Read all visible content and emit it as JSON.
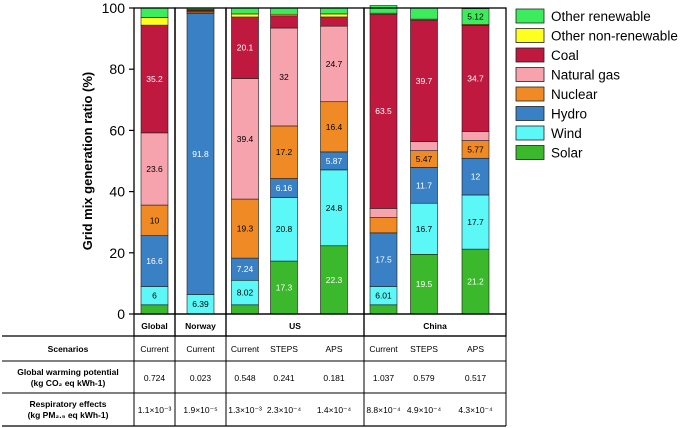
{
  "chart_data": {
    "type": "bar",
    "stacked": true,
    "ylabel": "Grid mix generation ratio (%)",
    "ylim": [
      0,
      100
    ],
    "yticks": [
      0,
      20,
      40,
      60,
      80,
      100
    ],
    "groups": [
      {
        "name": "Global",
        "scenarios": [
          "Current"
        ]
      },
      {
        "name": "Norway",
        "scenarios": [
          "Current"
        ]
      },
      {
        "name": "US",
        "scenarios": [
          "Current",
          "STEPS",
          "APS"
        ]
      },
      {
        "name": "China",
        "scenarios": [
          "Current",
          "STEPS",
          "APS"
        ]
      }
    ],
    "categories": [
      "Global Current",
      "Norway Current",
      "US Current",
      "US STEPS",
      "US APS",
      "China Current",
      "China STEPS",
      "China APS"
    ],
    "series": [
      {
        "name": "Solar",
        "color": "#3bb82b",
        "values": [
          3.0,
          0.0,
          3.0,
          17.3,
          22.3,
          3.0,
          19.5,
          21.2
        ]
      },
      {
        "name": "Wind",
        "color": "#5cf7f7",
        "values": [
          6,
          6.39,
          8.02,
          20.8,
          24.8,
          6.01,
          16.7,
          17.7
        ]
      },
      {
        "name": "Hydro",
        "color": "#3a80c4",
        "values": [
          16.6,
          91.8,
          7.24,
          6.16,
          5.87,
          17.5,
          11.7,
          12
        ]
      },
      {
        "name": "Nuclear",
        "color": "#f08a24",
        "values": [
          10,
          0.5,
          19.3,
          17.2,
          16.4,
          5.0,
          5.47,
          5.77
        ]
      },
      {
        "name": "Natural gas",
        "color": "#f6a3ad",
        "values": [
          23.6,
          0.3,
          39.4,
          32,
          24.7,
          3.0,
          3.0,
          3.0
        ]
      },
      {
        "name": "Coal",
        "color": "#c0193f",
        "values": [
          35.2,
          0.3,
          20.1,
          4.0,
          3.0,
          63.5,
          39.7,
          34.7
        ]
      },
      {
        "name": "Other non-renewable",
        "color": "#ffff1f",
        "values": [
          2.5,
          0.2,
          1.0,
          0.5,
          1.0,
          0.3,
          0.3,
          0.3
        ]
      },
      {
        "name": "Other renewable",
        "color": "#3cec5c",
        "values": [
          3.1,
          0.5,
          2.0,
          2.0,
          2.0,
          2.5,
          3.6,
          5.12
        ]
      }
    ],
    "segment_labels": [
      [
        null,
        "6",
        "16.6",
        "10",
        "23.6",
        "35.2",
        null,
        null
      ],
      [
        null,
        "6.39",
        "91.8",
        null,
        null,
        null,
        null,
        null
      ],
      [
        null,
        "8.02",
        "7.24",
        "19.3",
        "39.4",
        "20.1",
        null,
        null
      ],
      [
        "17.3",
        "20.8",
        "6.16",
        "17.2",
        "32",
        null,
        null,
        null
      ],
      [
        "22.3",
        "24.8",
        "5.87",
        "16.4",
        "24.7",
        null,
        null,
        null
      ],
      [
        null,
        "6.01",
        "17.5",
        null,
        null,
        "63.5",
        null,
        null
      ],
      [
        "19.5",
        "16.7",
        "11.7",
        "5.47",
        null,
        "39.7",
        null,
        null
      ],
      [
        "21.2",
        "17.7",
        "12",
        "5.77",
        null,
        "34.7",
        null,
        "5.12"
      ]
    ],
    "legend": [
      "Other renewable",
      "Other non-renewable",
      "Coal",
      "Natural gas",
      "Nuclear",
      "Hydro",
      "Wind",
      "Solar"
    ],
    "legend_position": "right"
  },
  "table": {
    "scenarios_header": "Scenarios",
    "scenarios": [
      "Current",
      "Current",
      "Current",
      "STEPS",
      "APS",
      "Current",
      "STEPS",
      "APS"
    ],
    "gwp_label_line1": "Global warming potential",
    "gwp_label_line2": "(kg CO₂ eq kWh-1)",
    "gwp_values": [
      "0.724",
      "0.023",
      "0.548",
      "0.241",
      "0.181",
      "1.037",
      "0.579",
      "0.517"
    ],
    "resp_label_line1": "Respiratory effects",
    "resp_label_line2": "(kg PM₂.₅ eq kWh-1)",
    "resp_values": [
      "1.1×10⁻³",
      "1.9×10⁻⁵",
      "1.3×10⁻³",
      "2.3×10⁻⁴",
      "1.4×10⁻⁴",
      "8.8×10⁻⁴",
      "4.9×10⁻⁴",
      "4.3×10⁻⁴"
    ]
  }
}
